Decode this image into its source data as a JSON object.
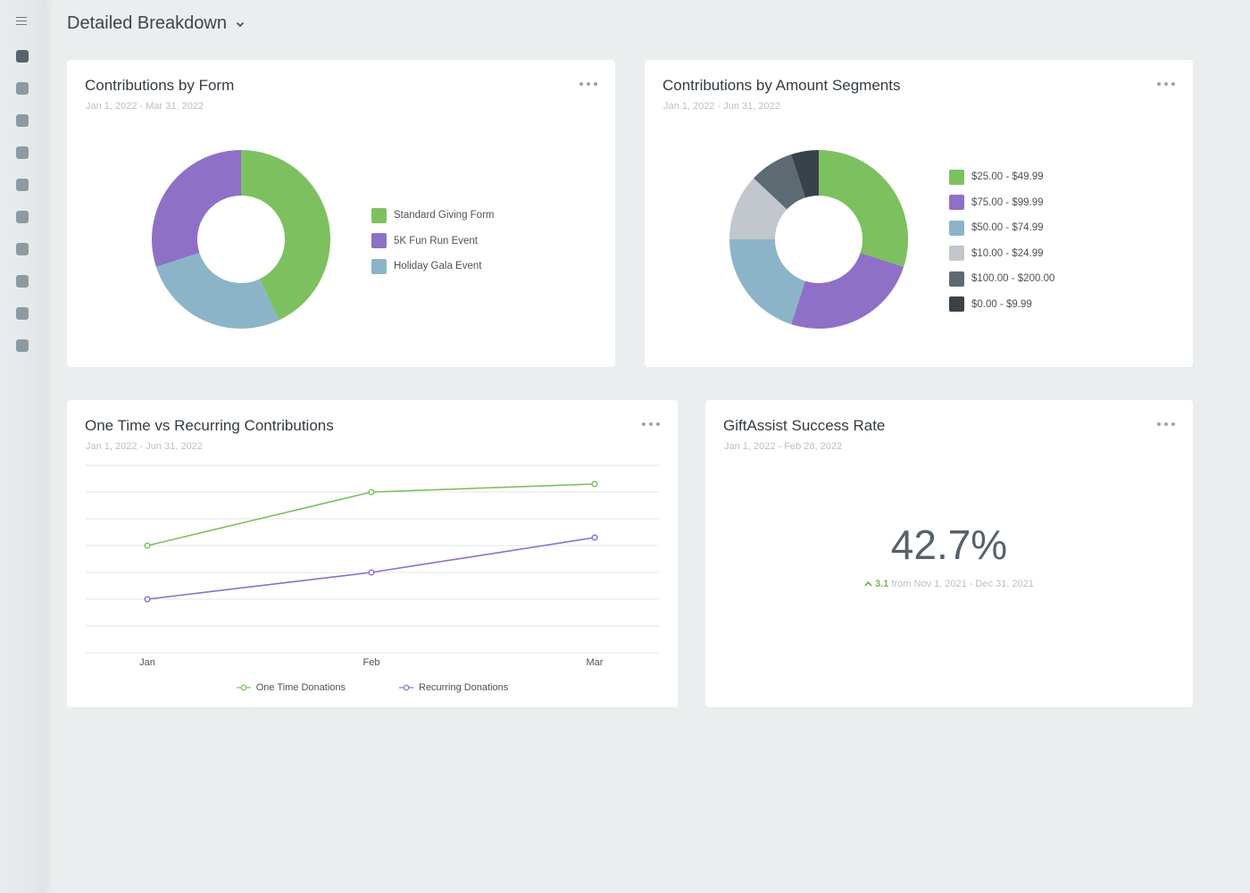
{
  "page": {
    "title": "Detailed Breakdown"
  },
  "colors": {
    "green": "#7dc060",
    "purple": "#8f70c7",
    "lightblue": "#8cb4c8",
    "lightgray": "#c1c7cc",
    "slate": "#5e6a72",
    "dark": "#3a4249"
  },
  "sidebar": {
    "items": [
      {
        "icon": "square-icon",
        "active": true
      },
      {
        "icon": "square-icon"
      },
      {
        "icon": "square-icon"
      },
      {
        "icon": "square-icon"
      },
      {
        "icon": "square-icon"
      },
      {
        "icon": "square-icon"
      },
      {
        "icon": "square-icon"
      },
      {
        "icon": "square-icon"
      },
      {
        "icon": "square-icon"
      },
      {
        "icon": "square-icon"
      }
    ]
  },
  "cards": {
    "form": {
      "title": "Contributions by Form",
      "date": "Jan 1, 2022 - Mar 31, 2022"
    },
    "amount": {
      "title": "Contributions by Amount Segments",
      "date": "Jan 1, 2022 - Jun 31, 2022"
    },
    "recurring": {
      "title": "One Time vs Recurring Contributions",
      "date": "Jan 1, 2022 - Jun 31, 2022"
    },
    "giftassist": {
      "title": "GiftAssist Success Rate",
      "date": "Jan 1, 2022 - Feb 28, 2022",
      "value": "42.7%",
      "change": "3.1",
      "comparison": "from Nov 1, 2021 - Dec 31, 2021"
    }
  },
  "chart_data": [
    {
      "type": "pie",
      "title": "Contributions by Form",
      "donut": true,
      "categories": [
        "Standard Giving Form",
        "5K Fun Run Event",
        "Holiday Gala Event"
      ],
      "values": [
        43,
        30,
        27
      ],
      "slice_order": [
        "Standard Giving Form",
        "Holiday Gala Event",
        "5K Fun Run Event"
      ],
      "colors": [
        "#7dc060",
        "#8f70c7",
        "#8cb4c8"
      ],
      "legend": "right"
    },
    {
      "type": "pie",
      "title": "Contributions by Amount Segments",
      "donut": true,
      "categories": [
        "$25.00 - $49.99",
        "$75.00 - $99.99",
        "$50.00 - $74.99",
        "$10.00 - $24.99",
        "$100.00 - $200.00",
        "$0.00 - $9.99"
      ],
      "values": [
        30,
        25,
        20,
        12,
        8,
        5
      ],
      "colors": [
        "#7dc060",
        "#8f70c7",
        "#8cb4c8",
        "#c1c7cc",
        "#5e6a72",
        "#3a4249"
      ],
      "legend": "right"
    },
    {
      "type": "line",
      "title": "One Time vs Recurring Contributions",
      "categories": [
        "Jan",
        "Feb",
        "Mar"
      ],
      "series": [
        {
          "name": "One Time Donations",
          "values": [
            4,
            6,
            6.3
          ],
          "color": "#7dc060"
        },
        {
          "name": "Recurring Donations",
          "values": [
            2,
            3,
            4.3
          ],
          "color": "#8f70c7"
        }
      ],
      "ylim": [
        0,
        7
      ],
      "grid": true,
      "legend": "bottom"
    }
  ]
}
